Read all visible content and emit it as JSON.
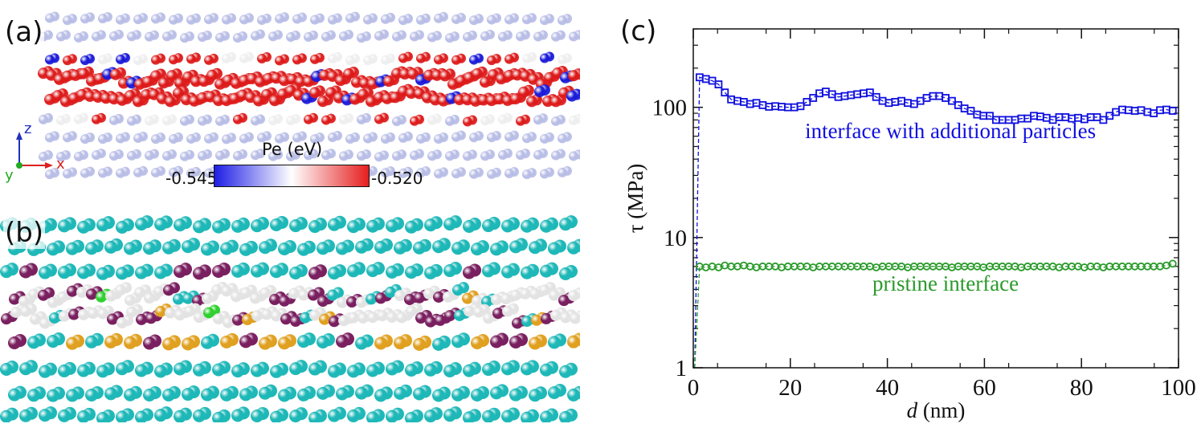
{
  "panels": {
    "a": {
      "label": "(a)",
      "colorbar": {
        "title": "Pe (eV)",
        "min_label": "-0.545",
        "max_label": "-0.520",
        "low_color": "#1e1ee6",
        "mid_color": "#ffffff",
        "high_color": "#e61e1e"
      },
      "axes": {
        "z": "z",
        "y": "y",
        "x": "x"
      },
      "atom_colors": {
        "bulk": "#b8bde6",
        "interface": "#dd1a1a",
        "low": "#1a1ad8",
        "white": "#eeeeee"
      }
    },
    "b": {
      "label": "(b)",
      "atom_colors": {
        "bulk": "#1fb8b8",
        "purple": "#7a2060",
        "white": "#e3e3e3",
        "orange": "#e0a020",
        "green": "#30d030",
        "red": "#e05020"
      }
    },
    "c": {
      "label": "(c)"
    }
  },
  "chart_data": {
    "type": "scatter",
    "title": "",
    "xlabel_italic": "d",
    "xlabel_rest": " (nm)",
    "ylabel": "τ (MPa)",
    "xlim": [
      0,
      100
    ],
    "ylim": [
      1,
      400
    ],
    "yscale": "log",
    "x_ticks": [
      0,
      20,
      40,
      60,
      80,
      100
    ],
    "x_tick_labels": [
      "0",
      "20",
      "40",
      "60",
      "80",
      "100"
    ],
    "y_ticks": [
      1,
      10,
      100
    ],
    "y_tick_labels": [
      "1",
      "10",
      "100"
    ],
    "grid": false,
    "series": [
      {
        "name": "interface with additional particles",
        "color": "#1010e0",
        "marker": "square",
        "x": [
          1.3,
          2.6,
          3.9,
          5.2,
          6.5,
          7.8,
          9.1,
          10.4,
          11.7,
          13,
          14.3,
          15.6,
          16.9,
          18.2,
          19.5,
          20.8,
          22.1,
          23.4,
          24.7,
          26,
          27.3,
          28.6,
          29.9,
          31.2,
          32.5,
          33.8,
          35.1,
          36.4,
          37.7,
          39,
          40.3,
          41.6,
          42.9,
          44.2,
          45.5,
          46.8,
          48.1,
          49.4,
          50.7,
          52,
          53.3,
          54.6,
          55.9,
          57.2,
          58.5,
          59.8,
          61.1,
          62.4,
          63.7,
          65,
          66.3,
          67.6,
          68.9,
          70.2,
          71.5,
          72.8,
          74.1,
          75.4,
          76.7,
          78,
          79.3,
          80.6,
          81.9,
          83.2,
          84.5,
          85.8,
          87.1,
          88.4,
          89.7,
          91,
          92.3,
          93.6,
          94.9,
          96.2,
          97.5,
          98.8
        ],
        "y": [
          170,
          165,
          160,
          150,
          130,
          115,
          112,
          110,
          106,
          108,
          104,
          101,
          102,
          101,
          100,
          100,
          102,
          110,
          118,
          128,
          132,
          126,
          120,
          122,
          124,
          126,
          128,
          130,
          120,
          112,
          108,
          110,
          112,
          108,
          106,
          112,
          118,
          122,
          122,
          118,
          112,
          104,
          98,
          94,
          88,
          86,
          86,
          80,
          80,
          80,
          80,
          82,
          82,
          86,
          85,
          83,
          80,
          84,
          84,
          82,
          83,
          81,
          84,
          84,
          80,
          86,
          92,
          96,
          95,
          94,
          95,
          92,
          90,
          95,
          96,
          94
        ]
      },
      {
        "name": "pristine interface",
        "color": "#2a9a2a",
        "marker": "circle",
        "x": [
          1.3,
          2.6,
          3.9,
          5.2,
          6.5,
          7.8,
          9.1,
          10.4,
          11.7,
          13,
          14.3,
          15.6,
          16.9,
          18.2,
          19.5,
          20.8,
          22.1,
          23.4,
          24.7,
          26,
          27.3,
          28.6,
          29.9,
          31.2,
          32.5,
          33.8,
          35.1,
          36.4,
          37.7,
          39,
          40.3,
          41.6,
          42.9,
          44.2,
          45.5,
          46.8,
          48.1,
          49.4,
          50.7,
          52,
          53.3,
          54.6,
          55.9,
          57.2,
          58.5,
          59.8,
          61.1,
          62.4,
          63.7,
          65,
          66.3,
          67.6,
          68.9,
          70.2,
          71.5,
          72.8,
          74.1,
          75.4,
          76.7,
          78,
          79.3,
          80.6,
          81.9,
          83.2,
          84.5,
          85.8,
          87.1,
          88.4,
          89.7,
          91,
          92.3,
          93.6,
          94.9,
          96.2,
          97.5,
          98.8
        ],
        "y": [
          6.0,
          5.9,
          6.0,
          5.9,
          6.1,
          6.0,
          6.0,
          6.1,
          6.0,
          5.9,
          6.0,
          6.0,
          6.0,
          5.9,
          6.0,
          6.0,
          6.0,
          6.0,
          5.9,
          6.0,
          6.0,
          6.0,
          6.0,
          6.0,
          6.0,
          6.0,
          6.0,
          6.0,
          5.9,
          6.0,
          6.0,
          6.0,
          6.0,
          5.9,
          6.0,
          6.0,
          6.0,
          6.0,
          6.0,
          6.0,
          5.9,
          6.0,
          6.0,
          6.0,
          6.0,
          5.9,
          6.0,
          6.0,
          6.0,
          6.0,
          6.0,
          5.9,
          6.0,
          6.0,
          6.0,
          6.0,
          6.0,
          5.9,
          6.0,
          6.0,
          6.0,
          5.9,
          6.0,
          6.0,
          5.9,
          6.0,
          6.0,
          6.0,
          6.0,
          6.0,
          6.0,
          6.0,
          6.0,
          6.0,
          6.1,
          6.3
        ]
      }
    ],
    "annotations": [
      {
        "text": "interface with additional particles",
        "color": "#1010e0",
        "x": 53,
        "y": 58
      },
      {
        "text": "pristine interface",
        "color": "#2a9a2a",
        "x": 52,
        "y": 3.9
      }
    ]
  }
}
